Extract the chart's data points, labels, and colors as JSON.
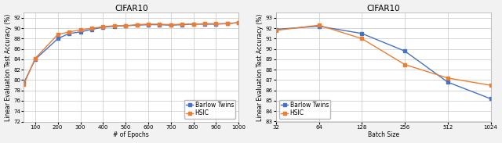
{
  "plot1": {
    "title": "CIFAR10",
    "xlabel": "# of Epochs",
    "ylabel": "Linear Evaluation Test Accuracy (%)",
    "xlim": [
      50,
      1000
    ],
    "ylim": [
      72,
      93
    ],
    "yticks": [
      72,
      74,
      76,
      78,
      80,
      82,
      84,
      86,
      88,
      90,
      92
    ],
    "xticks": [
      100,
      200,
      300,
      400,
      500,
      600,
      700,
      800,
      900,
      1000
    ],
    "barlow_x": [
      50,
      100,
      200,
      250,
      300,
      350,
      400,
      450,
      500,
      550,
      600,
      650,
      700,
      750,
      800,
      850,
      900,
      950,
      1000
    ],
    "barlow_y": [
      79.5,
      84.0,
      88.0,
      89.0,
      89.3,
      89.8,
      90.2,
      90.4,
      90.5,
      90.6,
      90.7,
      90.7,
      90.6,
      90.7,
      90.8,
      90.8,
      90.8,
      90.9,
      91.1
    ],
    "hsic_x": [
      50,
      100,
      200,
      250,
      300,
      350,
      400,
      450,
      500,
      550,
      600,
      650,
      700,
      750,
      800,
      850,
      900,
      950,
      1000
    ],
    "hsic_y": [
      79.2,
      84.2,
      88.8,
      89.3,
      89.7,
      90.0,
      90.3,
      90.5,
      90.5,
      90.7,
      90.8,
      90.8,
      90.7,
      90.8,
      90.8,
      90.9,
      90.9,
      90.9,
      91.1
    ],
    "barlow_color": "#4472C4",
    "hsic_color": "#ED7D31",
    "legend_labels": [
      "Barlow Twins",
      "HSIC"
    ],
    "legend_loc": "lower right"
  },
  "plot2": {
    "title": "CIFAR10",
    "xlabel": "Batch Size",
    "ylabel": "Linear Evaluation Test Accuracy (%)",
    "xlim_log": [
      32,
      1024
    ],
    "ylim": [
      83,
      93.5
    ],
    "yticks": [
      83,
      84,
      85,
      86,
      87,
      88,
      89,
      90,
      91,
      92,
      93
    ],
    "xtick_vals": [
      32,
      64,
      128,
      256,
      512,
      1024
    ],
    "xtick_labels": [
      "32",
      "64",
      "128",
      "256",
      "512",
      "1024"
    ],
    "barlow_x": [
      32,
      64,
      128,
      256,
      512,
      1024
    ],
    "barlow_y": [
      91.9,
      92.2,
      91.5,
      89.8,
      86.8,
      85.2
    ],
    "hsic_x": [
      32,
      64,
      128,
      256,
      512,
      1024
    ],
    "hsic_y": [
      91.8,
      92.3,
      91.0,
      88.5,
      87.2,
      86.5
    ],
    "barlow_color": "#4472C4",
    "hsic_color": "#ED7D31",
    "legend_labels": [
      "Barlow Twins",
      "HSIC"
    ],
    "legend_loc": "lower left"
  },
  "figure_bg": "#f2f2f2",
  "axes_bg": "#ffffff",
  "grid_color": "#c8c8c8",
  "marker": "s",
  "marker_size": 2.5,
  "linewidth": 1.0,
  "title_fontsize": 7.5,
  "label_fontsize": 5.5,
  "tick_fontsize": 5.0,
  "legend_fontsize": 5.5
}
